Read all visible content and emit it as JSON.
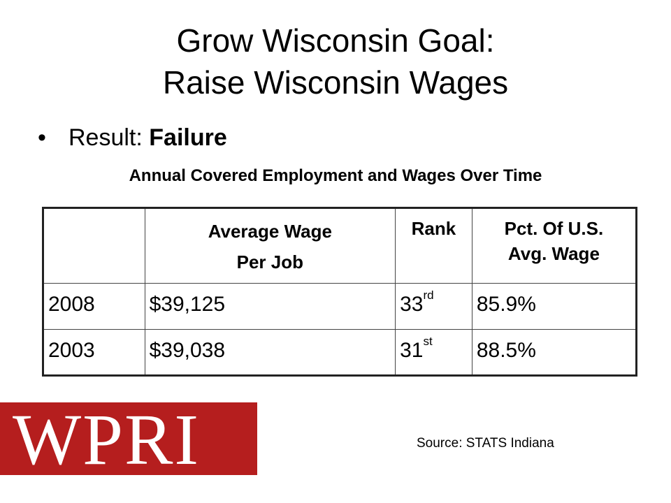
{
  "slide": {
    "title_line1": "Grow Wisconsin Goal:",
    "title_line2": "Raise Wisconsin Wages",
    "bullet": "•",
    "result_label": "Result: ",
    "result_value": "Failure",
    "subtitle": "Annual Covered Employment and Wages Over Time"
  },
  "table": {
    "headers": {
      "year": "",
      "avg_wage_line1": "Average Wage",
      "avg_wage_line2": "Per Job",
      "rank": "Rank",
      "pct_line1": "Pct. Of U.S.",
      "pct_line2": "Avg. Wage"
    },
    "rows": [
      {
        "year": "2008",
        "wage": "$39,125",
        "rank": "33",
        "rank_suffix": "rd",
        "pct": "85.9%"
      },
      {
        "year": "2003",
        "wage": "$39,038",
        "rank": "31",
        "rank_suffix": "st",
        "pct": "88.5%"
      }
    ]
  },
  "logo": {
    "text": "WPRI",
    "background": "#b51e1e"
  },
  "source": "Source: STATS Indiana"
}
